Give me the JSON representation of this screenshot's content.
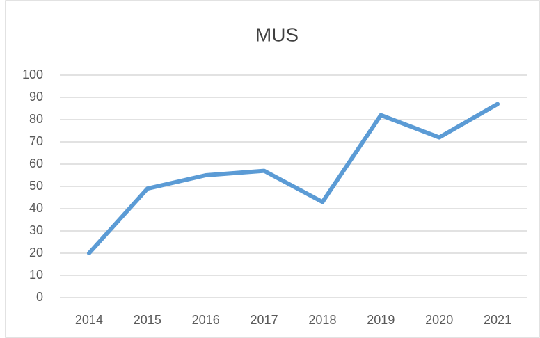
{
  "chart_data": {
    "type": "line",
    "title": "MUS",
    "categories": [
      "2014",
      "2015",
      "2016",
      "2017",
      "2018",
      "2019",
      "2020",
      "2021"
    ],
    "values": [
      20,
      49,
      55,
      57,
      43,
      82,
      72,
      87
    ],
    "color": "#5b9bd5",
    "ylim": [
      0,
      100
    ],
    "yticks": [
      0,
      10,
      20,
      30,
      40,
      50,
      60,
      70,
      80,
      90,
      100
    ],
    "grid": true
  }
}
